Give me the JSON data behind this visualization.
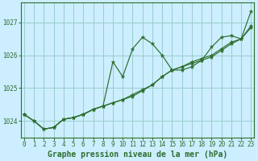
{
  "xlabel": "Graphe pression niveau de la mer (hPa)",
  "bg_color": "#cceeff",
  "grid_color": "#99cccc",
  "line_color": "#2d6e2d",
  "x": [
    0,
    1,
    2,
    3,
    4,
    5,
    6,
    7,
    8,
    9,
    10,
    11,
    12,
    13,
    14,
    15,
    16,
    17,
    18,
    19,
    20,
    21,
    22,
    23
  ],
  "y_main": [
    1024.2,
    1024.0,
    1023.75,
    1023.8,
    1024.05,
    1024.1,
    1024.2,
    1024.35,
    1024.45,
    1025.8,
    1025.35,
    1026.2,
    1026.55,
    1026.35,
    1026.0,
    1025.55,
    1025.55,
    1025.65,
    1025.85,
    1026.25,
    1026.55,
    1026.6,
    1026.5,
    1027.35
  ],
  "y_line2": [
    1024.2,
    1024.0,
    1023.75,
    1023.8,
    1024.05,
    1024.1,
    1024.2,
    1024.35,
    1024.45,
    1024.55,
    1024.65,
    1024.75,
    1024.92,
    1025.1,
    1025.35,
    1025.55,
    1025.65,
    1025.75,
    1025.85,
    1025.95,
    1026.15,
    1026.35,
    1026.5,
    1026.85
  ],
  "y_line3": [
    1024.2,
    1024.0,
    1023.75,
    1023.8,
    1024.05,
    1024.1,
    1024.2,
    1024.35,
    1024.45,
    1024.55,
    1024.65,
    1024.8,
    1024.95,
    1025.1,
    1025.35,
    1025.55,
    1025.65,
    1025.8,
    1025.9,
    1026.0,
    1026.2,
    1026.4,
    1026.5,
    1026.9
  ],
  "ylim": [
    1023.5,
    1027.6
  ],
  "yticks": [
    1024,
    1025,
    1026,
    1027
  ],
  "xticks": [
    0,
    1,
    2,
    3,
    4,
    5,
    6,
    7,
    8,
    9,
    10,
    11,
    12,
    13,
    14,
    15,
    16,
    17,
    18,
    19,
    20,
    21,
    22,
    23
  ],
  "tick_fontsize": 5.5,
  "xlabel_fontsize": 7
}
